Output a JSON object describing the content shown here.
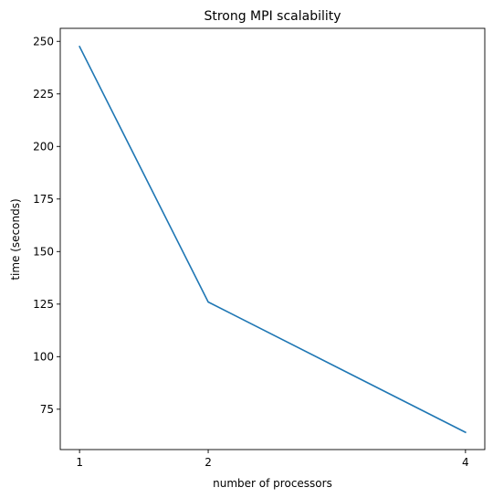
{
  "chart_data": {
    "type": "line",
    "title": "Strong MPI scalability",
    "xlabel": "number of processors",
    "ylabel": "time (seconds)",
    "x": [
      1,
      2,
      4
    ],
    "series": [
      {
        "values": [
          247.5,
          126,
          64
        ],
        "color": "#1f77b4"
      }
    ],
    "xlim": [
      0.85,
      4.15
    ],
    "ylim": [
      55.8,
      256.2
    ],
    "x_ticks": [
      "1",
      "2",
      "4"
    ],
    "y_ticks": [
      "75",
      "100",
      "125",
      "150",
      "175",
      "200",
      "225",
      "250"
    ],
    "grid": false,
    "legend": "none"
  }
}
